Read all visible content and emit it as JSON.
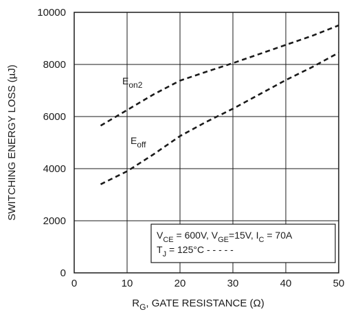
{
  "chart_data": {
    "type": "line",
    "title": "",
    "xlabel": {
      "main": "R",
      "sub": "G",
      "rest": ", GATE RESISTANCE (Ω)"
    },
    "ylabel": "SWITCHING ENERGY LOSS (µJ)",
    "xlim": [
      0,
      50
    ],
    "ylim": [
      0,
      10000
    ],
    "xticks": [
      "0",
      "10",
      "20",
      "30",
      "40",
      "50"
    ],
    "yticks": [
      "0",
      "2000",
      "4000",
      "6000",
      "8000",
      "10000"
    ],
    "grid": true,
    "series": [
      {
        "name": {
          "main": "E",
          "sub": "on2"
        },
        "style": "dashed",
        "x": [
          5,
          10,
          15,
          20,
          25,
          30,
          35,
          40,
          45,
          50
        ],
        "y": [
          5650,
          6250,
          6850,
          7380,
          7720,
          8050,
          8400,
          8750,
          9100,
          9500
        ]
      },
      {
        "name": {
          "main": "E",
          "sub": "off"
        },
        "style": "dashed",
        "x": [
          5,
          10,
          15,
          20,
          25,
          30,
          35,
          40,
          45,
          50
        ],
        "y": [
          3400,
          3900,
          4550,
          5250,
          5800,
          6300,
          6850,
          7400,
          7900,
          8450
        ]
      }
    ],
    "conditions": {
      "line1": [
        {
          "t": "V"
        },
        {
          "t": "CE",
          "sub": true
        },
        {
          "t": " = 600V, V"
        },
        {
          "t": "GE",
          "sub": true
        },
        {
          "t": "=15V, I"
        },
        {
          "t": "C",
          "sub": true
        },
        {
          "t": " = 70A"
        }
      ],
      "line2": [
        {
          "t": "T"
        },
        {
          "t": "J",
          "sub": true
        },
        {
          "t": " = 125°C  - - - - -"
        }
      ]
    },
    "colors": {
      "line": "#1a1a1a",
      "grid": "#1a1a1a",
      "background": "#ffffff"
    }
  }
}
